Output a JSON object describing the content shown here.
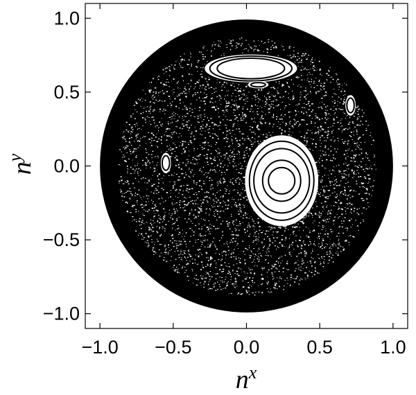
{
  "chart_data": {
    "type": "scatter",
    "title": "",
    "xlabel": {
      "base": "n",
      "sup": "x"
    },
    "ylabel": {
      "base": "n",
      "sup": "y"
    },
    "xlim": [
      -1.1,
      1.1
    ],
    "ylim": [
      -1.1,
      1.1
    ],
    "x_ticks": [
      {
        "value": -1.0,
        "label": "−1.0"
      },
      {
        "value": -0.5,
        "label": "−0.5"
      },
      {
        "value": 0.0,
        "label": "0.0"
      },
      {
        "value": 0.5,
        "label": "0.5"
      },
      {
        "value": 1.0,
        "label": "1.0"
      }
    ],
    "y_ticks": [
      {
        "value": -1.0,
        "label": "−1.0"
      },
      {
        "value": -0.5,
        "label": "−0.5"
      },
      {
        "value": 0.0,
        "label": "0.0"
      },
      {
        "value": 0.5,
        "label": "0.5"
      },
      {
        "value": 1.0,
        "label": "1.0"
      }
    ],
    "grid": false,
    "legend": "none",
    "point_color": "#000000",
    "background": "#ffffff",
    "chaotic_sea": {
      "center": [
        0.0,
        0.0
      ],
      "radius": 1.0
    },
    "islands": [
      {
        "name": "island-right",
        "center": [
          0.24,
          -0.1
        ],
        "rx": 0.25,
        "ry": 0.31,
        "rings": [
          [
            0.09,
            0.09
          ],
          [
            0.13,
            0.14
          ],
          [
            0.19,
            0.22
          ],
          [
            0.22,
            0.27
          ]
        ]
      },
      {
        "name": "island-top-arc",
        "center": [
          0.03,
          0.66
        ],
        "rx": 0.32,
        "ry": 0.1,
        "rings": [
          [
            0.23,
            0.07
          ],
          [
            0.28,
            0.085
          ],
          [
            0.32,
            0.1
          ]
        ]
      },
      {
        "name": "island-left",
        "center": [
          -0.55,
          0.02
        ],
        "rx": 0.035,
        "ry": 0.07,
        "rings": [
          [
            0.025,
            0.05
          ]
        ]
      },
      {
        "name": "island-upper-right",
        "center": [
          0.71,
          0.41
        ],
        "rx": 0.035,
        "ry": 0.07,
        "rings": [
          [
            0.025,
            0.05
          ]
        ]
      },
      {
        "name": "island-small-center",
        "center": [
          0.08,
          0.55
        ],
        "rx": 0.07,
        "ry": 0.025,
        "rings": [
          [
            0.05,
            0.015
          ]
        ]
      }
    ]
  }
}
